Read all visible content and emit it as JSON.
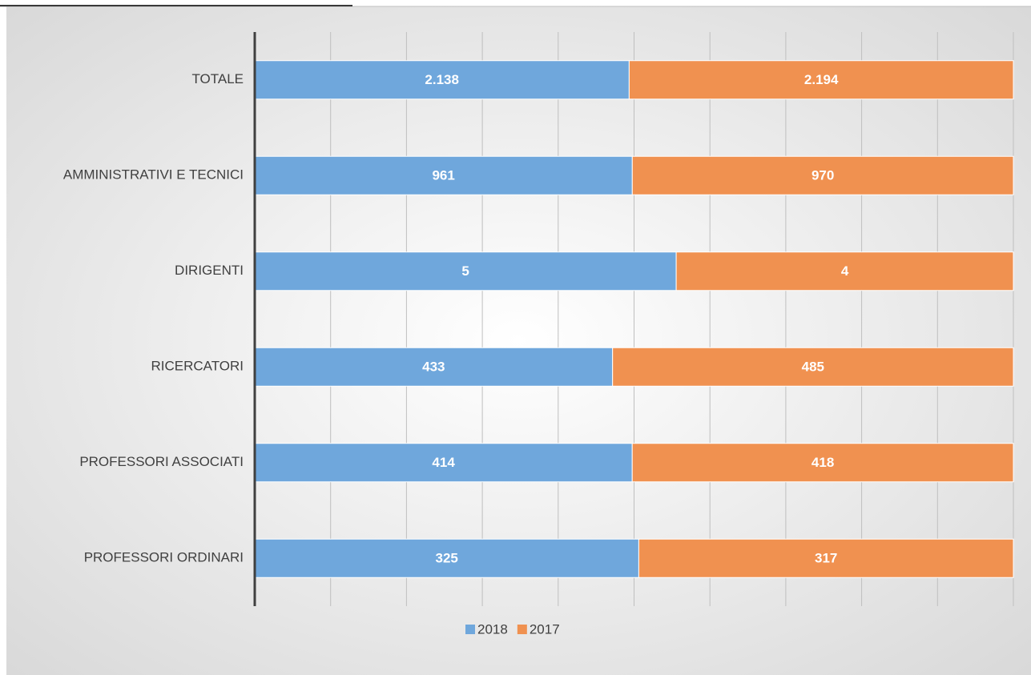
{
  "chart_data": {
    "type": "bar",
    "orientation": "horizontal",
    "stacked": "percent",
    "categories": [
      "PROFESSORI ORDINARI",
      "PROFESSORI ASSOCIATI",
      "RICERCATORI",
      "DIRIGENTI",
      "AMMINISTRATIVI E TECNICI",
      "TOTALE"
    ],
    "series": [
      {
        "name": "2018",
        "color": "#6fa7dc",
        "values": [
          325,
          414,
          433,
          5,
          961,
          2138
        ],
        "value_labels": [
          "325",
          "414",
          "433",
          "5",
          "961",
          "2.138"
        ]
      },
      {
        "name": "2017",
        "color": "#f09150",
        "values": [
          317,
          418,
          485,
          4,
          970,
          2194
        ],
        "value_labels": [
          "317",
          "418",
          "485",
          "4",
          "970",
          "2.194"
        ]
      }
    ],
    "xlim": [
      0,
      100
    ],
    "xticks": [
      0,
      10,
      20,
      30,
      40,
      50,
      60,
      70,
      80,
      90,
      100
    ],
    "grid": true,
    "legend": "bottom"
  }
}
